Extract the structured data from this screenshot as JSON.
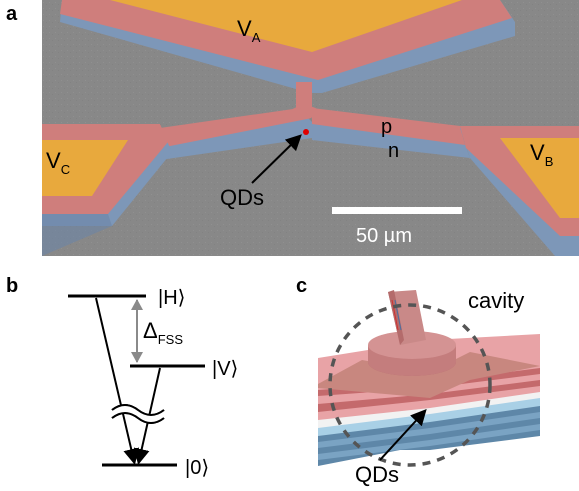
{
  "panel_a": {
    "letter": "a",
    "contact_a": "V",
    "contact_a_sub": "A",
    "contact_b": "V",
    "contact_b_sub": "B",
    "contact_c": "V",
    "contact_c_sub": "C",
    "p_label": "p",
    "n_label": "n",
    "qds_label": "QDs",
    "scalebar_label": "50 µm"
  },
  "panel_b": {
    "letter": "b",
    "state_h": "|H⟩",
    "state_v": "|V⟩",
    "state_0": "|0⟩",
    "delta_symbol": "Δ",
    "delta_sub": "FSS"
  },
  "panel_c": {
    "letter": "c",
    "cavity_label": "cavity",
    "qds_label": "QDs"
  }
}
